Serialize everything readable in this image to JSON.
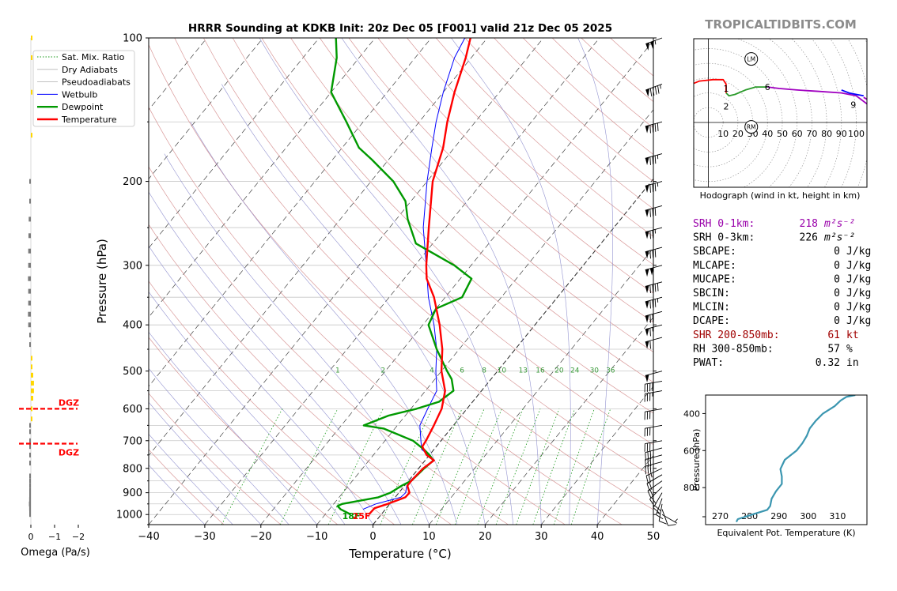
{
  "header": {
    "title": "HRRR Sounding at KDKB Init: 20z Dec 05 [F001] valid 21z Dec 05 2025",
    "brand": "TROPICALTIDBITS.COM"
  },
  "colors": {
    "temperature": "#ff0000",
    "dewpoint": "#009900",
    "wetbulb": "#0000ff",
    "dry_adiabat": "#d08080",
    "moist_adiabat": "#8080c8",
    "mixing_ratio": "#1a9a1a",
    "hodo_0_1": "#ff0000",
    "hodo_1_3": "#2a9a2a",
    "hodo_3_6": "#0000ff",
    "hodo_6_9": "#a000c0",
    "theta_e": "#3b96b0",
    "srh_highlight": "#9900aa",
    "shr_highlight": "#a00000",
    "omega_up": "#ffd700",
    "omega_down": "#7a7a7a",
    "dgz": "#ff0000",
    "brand": "#8c8c8c"
  },
  "legend": {
    "placement": "top-left",
    "items": [
      {
        "label": "Sat. Mix. Ratio",
        "style": "dotted",
        "color": "#1a9a1a"
      },
      {
        "label": "Dry Adiabats",
        "style": "solid-thin",
        "color": "#b8b8b8"
      },
      {
        "label": "Pseudoadiabats",
        "style": "solid-thin",
        "color": "#b8b8b8"
      },
      {
        "label": "Wetbulb",
        "style": "solid",
        "color": "#0000ff"
      },
      {
        "label": "Dewpoint",
        "style": "solid-thick",
        "color": "#009900"
      },
      {
        "label": "Temperature",
        "style": "solid-thick",
        "color": "#ff0000"
      }
    ]
  },
  "chart_data": [
    {
      "type": "line",
      "subtype": "skew-t",
      "title": "HRRR Sounding at KDKB Init: 20z Dec 05 [F001] valid 21z Dec 05 2025",
      "xlabel": "Temperature (°C)",
      "ylabel": "Pressure (hPa)",
      "xlim": [
        -40,
        50
      ],
      "ylim": [
        1050,
        100
      ],
      "yscale": "log",
      "xticks": [
        "−40",
        "−30",
        "−20",
        "−10",
        "0",
        "10",
        "20",
        "30",
        "40",
        "50"
      ],
      "yticks": [
        "100",
        "200",
        "300",
        "400",
        "500",
        "600",
        "700",
        "800",
        "900",
        "1000"
      ],
      "mixing_ratio_labels": [
        "1",
        "2",
        "4",
        "6",
        "8",
        "10",
        "13",
        "16",
        "20",
        "24",
        "30",
        "36"
      ],
      "surface_labels": {
        "dewpoint": "18F",
        "temperature": "25F"
      },
      "series": [
        {
          "name": "Temperature",
          "points": [
            [
              1000,
              -2.2
            ],
            [
              970,
              -2.1
            ],
            [
              950,
              -0.4
            ],
            [
              920,
              1.8
            ],
            [
              900,
              1.9
            ],
            [
              870,
              0.5
            ],
            [
              850,
              0.5
            ],
            [
              800,
              0.8
            ],
            [
              770,
              1.6
            ],
            [
              750,
              -0.5
            ],
            [
              720,
              -2.5
            ],
            [
              700,
              -2.7
            ],
            [
              650,
              -3.5
            ],
            [
              600,
              -4.5
            ],
            [
              550,
              -6.5
            ],
            [
              500,
              -10
            ],
            [
              450,
              -13
            ],
            [
              400,
              -17
            ],
            [
              350,
              -22
            ],
            [
              320,
              -26
            ],
            [
              300,
              -28
            ],
            [
              250,
              -33
            ],
            [
              200,
              -39
            ],
            [
              170,
              -42
            ],
            [
              150,
              -45
            ],
            [
              130,
              -48
            ],
            [
              110,
              -51
            ],
            [
              100,
              -53
            ]
          ]
        },
        {
          "name": "Dewpoint",
          "points": [
            [
              1000,
              -5.4
            ],
            [
              975,
              -8
            ],
            [
              960,
              -9
            ],
            [
              950,
              -8.5
            ],
            [
              920,
              -3
            ],
            [
              900,
              -1.5
            ],
            [
              870,
              -0.5
            ],
            [
              850,
              0.5
            ],
            [
              800,
              1
            ],
            [
              770,
              1.5
            ],
            [
              750,
              0
            ],
            [
              730,
              -1.8
            ],
            [
              700,
              -5
            ],
            [
              660,
              -12
            ],
            [
              650,
              -16
            ],
            [
              620,
              -13
            ],
            [
              600,
              -9
            ],
            [
              580,
              -6
            ],
            [
              550,
              -5
            ],
            [
              520,
              -7
            ],
            [
              500,
              -9
            ],
            [
              450,
              -14
            ],
            [
              400,
              -19
            ],
            [
              370,
              -20
            ],
            [
              350,
              -17
            ],
            [
              320,
              -18
            ],
            [
              300,
              -23
            ],
            [
              270,
              -33
            ],
            [
              240,
              -38
            ],
            [
              220,
              -41
            ],
            [
              200,
              -46
            ],
            [
              180,
              -53
            ],
            [
              170,
              -57
            ],
            [
              150,
              -63
            ],
            [
              130,
              -70
            ],
            [
              110,
              -74
            ],
            [
              100,
              -77
            ]
          ]
        },
        {
          "name": "Wetbulb",
          "points": [
            [
              975,
              -4
            ],
            [
              950,
              -2.5
            ],
            [
              920,
              1
            ],
            [
              900,
              1.2
            ],
            [
              870,
              0.4
            ],
            [
              850,
              0.3
            ],
            [
              800,
              0.8
            ],
            [
              770,
              1.4
            ],
            [
              750,
              -0.2
            ],
            [
              730,
              -2.2
            ],
            [
              700,
              -3.6
            ],
            [
              650,
              -6
            ],
            [
              600,
              -7
            ],
            [
              550,
              -8
            ],
            [
              500,
              -11
            ],
            [
              450,
              -14
            ],
            [
              400,
              -18
            ],
            [
              350,
              -23
            ],
            [
              300,
              -28
            ],
            [
              250,
              -34
            ],
            [
              200,
              -40
            ],
            [
              170,
              -44
            ],
            [
              150,
              -47
            ],
            [
              130,
              -50
            ],
            [
              110,
              -53
            ],
            [
              100,
              -54
            ]
          ]
        }
      ]
    },
    {
      "type": "line",
      "subtype": "hodograph",
      "title": "Hodograph (wind in kt, height in km)",
      "xticks": [
        "10",
        "20",
        "30",
        "40",
        "50",
        "60",
        "70",
        "80",
        "90",
        "100"
      ],
      "height_labels": [
        "1",
        "2",
        "6",
        "9"
      ],
      "motion_markers": [
        "LM",
        "RM"
      ],
      "series": [
        {
          "name": "0-1 km",
          "points": [
            [
              -15,
              16
            ],
            [
              -11,
              26
            ],
            [
              -6,
              28
            ],
            [
              3,
              29
            ],
            [
              10,
              29
            ],
            [
              12,
              26
            ],
            [
              12,
              20
            ]
          ]
        },
        {
          "name": "1-3 km",
          "points": [
            [
              12,
              20
            ],
            [
              14,
              18
            ],
            [
              18,
              19
            ],
            [
              25,
              22
            ],
            [
              32,
              24
            ],
            [
              40,
              24
            ]
          ]
        },
        {
          "name": "3-6 km",
          "points": [
            [
              90,
              22
            ],
            [
              95,
              20
            ],
            [
              100,
              19
            ],
            [
              105,
              18
            ]
          ]
        },
        {
          "name": "6-9 km",
          "points": [
            [
              40,
              24
            ],
            [
              48,
              23
            ],
            [
              60,
              22
            ],
            [
              75,
              21
            ],
            [
              90,
              20
            ],
            [
              100,
              18
            ],
            [
              108,
              12
            ],
            [
              118,
              14
            ],
            [
              132,
              18
            ],
            [
              130,
              12
            ],
            [
              120,
              10
            ],
            [
              110,
              14
            ],
            [
              105,
              17
            ]
          ]
        }
      ]
    },
    {
      "type": "line",
      "subtype": "theta-e-profile",
      "xlabel": "Equivalent Pot. Temperature (K)",
      "ylabel": "Pressure (hPa)",
      "xlim": [
        265,
        320
      ],
      "ylim": [
        1000,
        300
      ],
      "xticks": [
        "270",
        "280",
        "290",
        "300",
        "310"
      ],
      "yticks": [
        "400",
        "600",
        "800"
      ],
      "points": [
        [
          985,
          275.5
        ],
        [
          970,
          276
        ],
        [
          940,
          282
        ],
        [
          920,
          286
        ],
        [
          900,
          287
        ],
        [
          860,
          287.5
        ],
        [
          820,
          289
        ],
        [
          780,
          291
        ],
        [
          740,
          291
        ],
        [
          700,
          290.5
        ],
        [
          650,
          292
        ],
        [
          600,
          296
        ],
        [
          560,
          298
        ],
        [
          520,
          299.5
        ],
        [
          480,
          300.5
        ],
        [
          440,
          302.5
        ],
        [
          400,
          305
        ],
        [
          360,
          309
        ],
        [
          330,
          311
        ],
        [
          310,
          313
        ],
        [
          300,
          316
        ]
      ]
    },
    {
      "type": "bar",
      "subtype": "omega-profile",
      "xlabel": "Omega (Pa/s)",
      "xticks": [
        "0",
        "−1",
        "−2"
      ],
      "dgz_label": "DGZ",
      "dgz_levels": [
        600,
        710
      ],
      "points": [
        [
          1000,
          -0.05
        ],
        [
          985,
          -0.06
        ],
        [
          970,
          -0.07
        ],
        [
          950,
          -0.08
        ],
        [
          930,
          -0.07
        ],
        [
          910,
          -0.05
        ],
        [
          890,
          -0.04
        ],
        [
          870,
          -0.03
        ],
        [
          850,
          -0.02
        ],
        [
          830,
          -0.01
        ],
        [
          780,
          -0.05
        ],
        [
          750,
          -0.05
        ],
        [
          720,
          -0.04
        ],
        [
          700,
          -0.04
        ],
        [
          670,
          -0.03
        ],
        [
          650,
          -0.02
        ],
        [
          630,
          0.0
        ],
        [
          600,
          0.05
        ],
        [
          570,
          0.1
        ],
        [
          550,
          0.13
        ],
        [
          530,
          0.13
        ],
        [
          510,
          0.1
        ],
        [
          490,
          0.06
        ],
        [
          470,
          0.02
        ],
        [
          440,
          -0.02
        ],
        [
          420,
          -0.06
        ],
        [
          400,
          -0.11
        ],
        [
          380,
          -0.12
        ],
        [
          360,
          -0.11
        ],
        [
          340,
          -0.11
        ],
        [
          320,
          -0.12
        ],
        [
          300,
          -0.11
        ],
        [
          280,
          -0.11
        ],
        [
          260,
          -0.1
        ],
        [
          240,
          -0.09
        ],
        [
          220,
          -0.06
        ],
        [
          200,
          -0.02
        ],
        [
          160,
          0.0
        ],
        [
          130,
          0.02
        ],
        [
          110,
          0.03
        ],
        [
          100,
          0.05
        ]
      ]
    }
  ],
  "stats": [
    {
      "label": "SRH 0-1km:",
      "value": "218",
      "unit": "m²s⁻²",
      "highlight": "srh"
    },
    {
      "label": "SRH 0-3km:",
      "value": "226",
      "unit": "m²s⁻²",
      "highlight": ""
    },
    {
      "label": "SBCAPE:",
      "value": "0",
      "unit": "J/kg",
      "highlight": ""
    },
    {
      "label": "MLCAPE:",
      "value": "0",
      "unit": "J/kg",
      "highlight": ""
    },
    {
      "label": "MUCAPE:",
      "value": "0",
      "unit": "J/kg",
      "highlight": ""
    },
    {
      "label": "SBCIN:",
      "value": "0",
      "unit": "J/kg",
      "highlight": ""
    },
    {
      "label": "MLCIN:",
      "value": "0",
      "unit": "J/kg",
      "highlight": ""
    },
    {
      "label": "DCAPE:",
      "value": "0",
      "unit": "J/kg",
      "highlight": ""
    },
    {
      "label": "SHR 200-850mb:",
      "value": "61",
      "unit": "kt",
      "highlight": "shr"
    },
    {
      "label": "RH 300-850mb:",
      "value": "57",
      "unit": "%",
      "highlight": ""
    },
    {
      "label": "PWAT:",
      "value": "0.32",
      "unit": "in",
      "highlight": ""
    }
  ],
  "wind_barbs": [
    {
      "p": 100,
      "dir": 250,
      "spd": 105
    },
    {
      "p": 125,
      "dir": 250,
      "spd": 95
    },
    {
      "p": 150,
      "dir": 255,
      "spd": 90
    },
    {
      "p": 175,
      "dir": 255,
      "spd": 85
    },
    {
      "p": 200,
      "dir": 255,
      "spd": 85
    },
    {
      "p": 225,
      "dir": 255,
      "spd": 80
    },
    {
      "p": 250,
      "dir": 255,
      "spd": 75
    },
    {
      "p": 275,
      "dir": 255,
      "spd": 80
    },
    {
      "p": 300,
      "dir": 255,
      "spd": 100
    },
    {
      "p": 325,
      "dir": 255,
      "spd": 90
    },
    {
      "p": 350,
      "dir": 255,
      "spd": 85
    },
    {
      "p": 375,
      "dir": 255,
      "spd": 70
    },
    {
      "p": 400,
      "dir": 255,
      "spd": 65
    },
    {
      "p": 425,
      "dir": 255,
      "spd": 60
    },
    {
      "p": 500,
      "dir": 255,
      "spd": 50
    },
    {
      "p": 525,
      "dir": 260,
      "spd": 40
    },
    {
      "p": 550,
      "dir": 260,
      "spd": 35
    },
    {
      "p": 600,
      "dir": 260,
      "spd": 30
    },
    {
      "p": 650,
      "dir": 260,
      "spd": 30
    },
    {
      "p": 700,
      "dir": 260,
      "spd": 30
    },
    {
      "p": 725,
      "dir": 255,
      "spd": 30
    },
    {
      "p": 750,
      "dir": 255,
      "spd": 30
    },
    {
      "p": 775,
      "dir": 255,
      "spd": 30
    },
    {
      "p": 800,
      "dir": 245,
      "spd": 25
    },
    {
      "p": 825,
      "dir": 240,
      "spd": 20
    },
    {
      "p": 850,
      "dir": 235,
      "spd": 20
    },
    {
      "p": 875,
      "dir": 225,
      "spd": 20
    },
    {
      "p": 900,
      "dir": 210,
      "spd": 20
    },
    {
      "p": 925,
      "dir": 200,
      "spd": 15
    },
    {
      "p": 950,
      "dir": 190,
      "spd": 10
    },
    {
      "p": 975,
      "dir": 160,
      "spd": 10
    },
    {
      "p": 1000,
      "dir": 120,
      "spd": 5
    }
  ]
}
